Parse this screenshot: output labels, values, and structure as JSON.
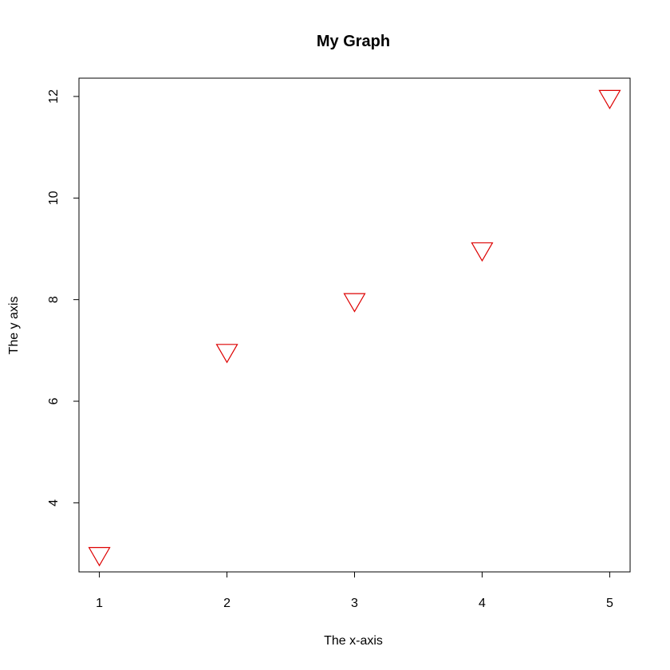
{
  "chart_data": {
    "type": "scatter",
    "title": "My Graph",
    "xlabel": "The x-axis",
    "ylabel": "The y axis",
    "x": [
      1,
      2,
      3,
      4,
      5
    ],
    "y": [
      3,
      7,
      8,
      9,
      12
    ],
    "xlim": [
      0.84,
      5.16
    ],
    "ylim": [
      2.64,
      12.36
    ],
    "xticks": [
      1,
      2,
      3,
      4,
      5
    ],
    "yticks": [
      4,
      6,
      8,
      10,
      12
    ],
    "marker": "triangle-down",
    "marker_color": "#dd0000",
    "grid": false
  }
}
